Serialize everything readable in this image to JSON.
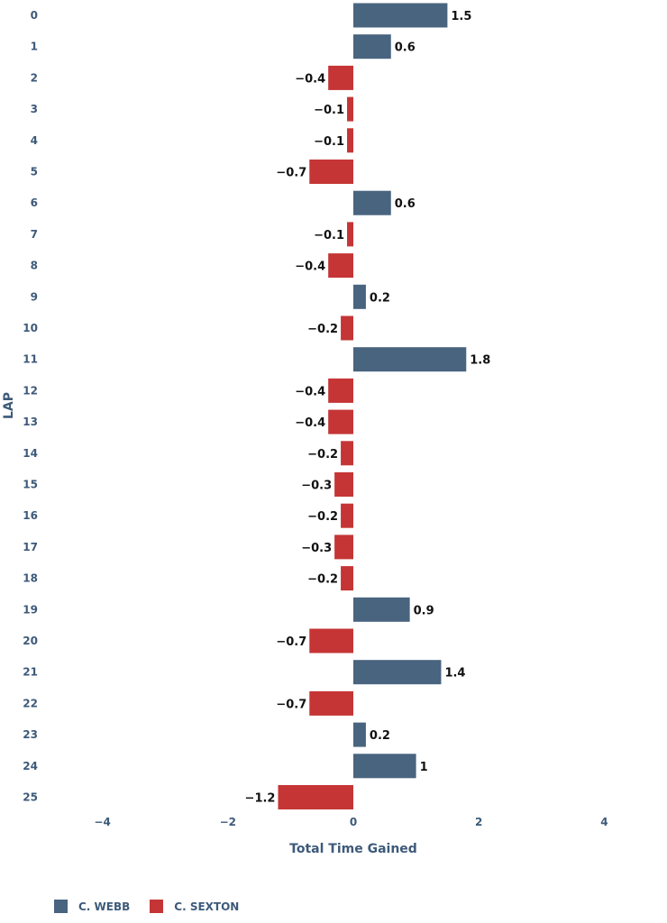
{
  "chart_data": {
    "type": "bar",
    "orientation": "horizontal",
    "title": "",
    "xlabel": "Total Time Gained",
    "ylabel": "LAP",
    "xlim": [
      -5,
      5
    ],
    "xticks": [
      -4,
      -2,
      0,
      2,
      4
    ],
    "tick_labels": [
      "−4",
      "−2",
      "0",
      "2",
      "4"
    ],
    "grid": false,
    "legend_position": "bottom-left",
    "categories": [
      "0",
      "1",
      "2",
      "3",
      "4",
      "5",
      "6",
      "7",
      "8",
      "9",
      "10",
      "11",
      "12",
      "13",
      "14",
      "15",
      "16",
      "17",
      "18",
      "19",
      "20",
      "21",
      "22",
      "23",
      "24",
      "25"
    ],
    "values": [
      1.5,
      0.6,
      -0.4,
      -0.1,
      -0.1,
      -0.7,
      0.6,
      -0.1,
      -0.4,
      0.2,
      -0.2,
      1.8,
      -0.4,
      -0.4,
      -0.2,
      -0.3,
      -0.2,
      -0.3,
      -0.2,
      0.9,
      -0.7,
      1.4,
      -0.7,
      0.2,
      1,
      -1.2
    ],
    "value_labels": [
      "1.5",
      "0.6",
      "−0.4",
      "−0.1",
      "−0.1",
      "−0.7",
      "0.6",
      "−0.1",
      "−0.4",
      "0.2",
      "−0.2",
      "1.8",
      "−0.4",
      "−0.4",
      "−0.2",
      "−0.3",
      "−0.2",
      "−0.3",
      "−0.2",
      "0.9",
      "−0.7",
      "1.4",
      "−0.7",
      "0.2",
      "1",
      "−1.2"
    ],
    "legend": [
      {
        "name": "C. WEBB",
        "color": "#48647f",
        "applies_to": "positive"
      },
      {
        "name": "C. SEXTON",
        "color": "#c53535",
        "applies_to": "negative"
      }
    ]
  }
}
